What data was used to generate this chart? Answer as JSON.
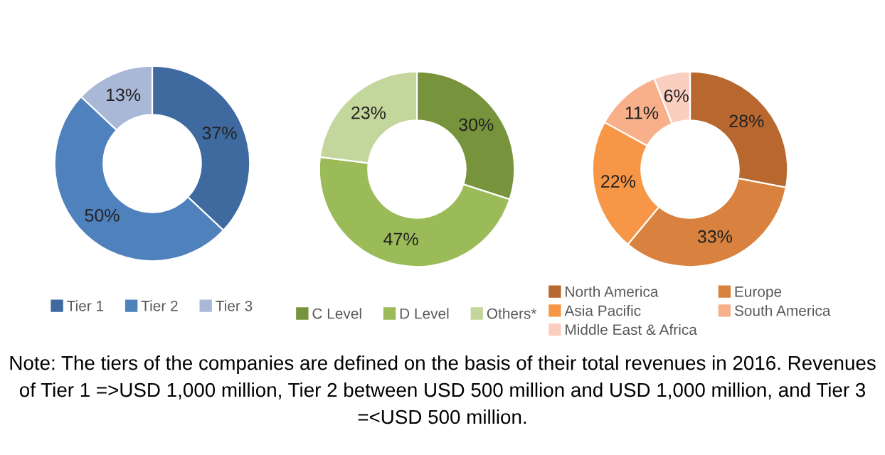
{
  "chart_data": [
    {
      "type": "donut",
      "categories": [
        "Tier 1",
        "Tier 2",
        "Tier 3"
      ],
      "values": [
        37,
        50,
        13
      ],
      "value_labels": [
        "37%",
        "50%",
        "13%"
      ],
      "colors": [
        "#3f6a9f",
        "#4f81bd",
        "#a9b8d6"
      ],
      "legend": "bottom"
    },
    {
      "type": "donut",
      "categories": [
        "C Level",
        "D Level",
        "Others*"
      ],
      "values": [
        30,
        47,
        23
      ],
      "value_labels": [
        "30%",
        "47%",
        "23%"
      ],
      "colors": [
        "#77933c",
        "#9bbb59",
        "#c3d69b"
      ],
      "legend": "bottom"
    },
    {
      "type": "donut",
      "categories": [
        "North America",
        "Europe",
        "Asia Pacific",
        "South America",
        "Middle East & Africa"
      ],
      "values": [
        28,
        33,
        22,
        11,
        6
      ],
      "value_labels": [
        "28%",
        "33%",
        "22%",
        "11%",
        "6%"
      ],
      "colors": [
        "#b8682f",
        "#d9813f",
        "#f79646",
        "#f7b08a",
        "#fbcfc0"
      ],
      "legend": "bottom",
      "annotations": [
        "Note: The tiers of the companies are defined on the basis of their total revenues in 2016. Revenues of Tier 1 =>USD 1,000 million, Tier 2 between USD 500 million and USD 1,000 million, and Tier 3 =<USD 500 million."
      ]
    }
  ]
}
